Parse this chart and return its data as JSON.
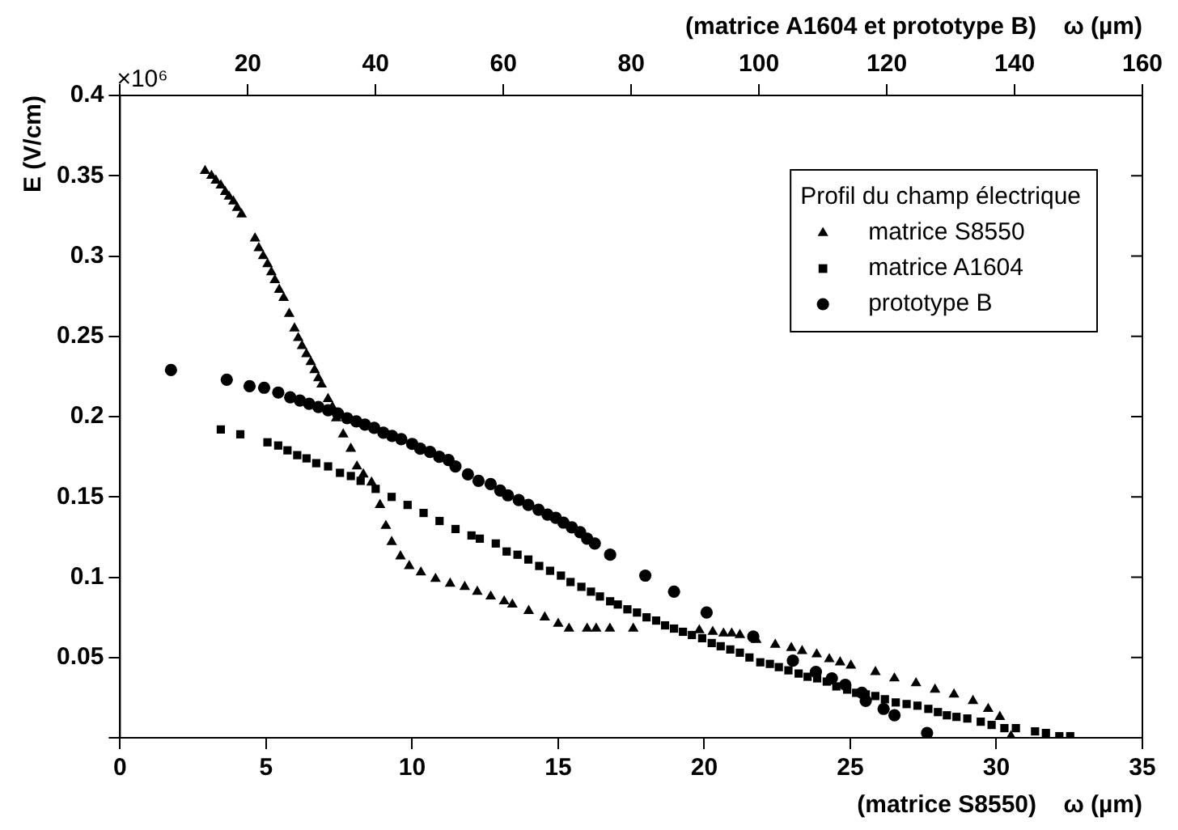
{
  "chart_data": {
    "type": "scatter",
    "xlabel": "(matrice S8550)    ω (µm)",
    "x2label": "(matrice A1604 et prototype B)    ω (µm)",
    "ylabel": "E (V/cm)",
    "legend_title": "Profil du champ électrique",
    "annotations": [
      "×10⁶"
    ],
    "xlim": [
      0,
      35
    ],
    "xticks": [
      0,
      5,
      10,
      15,
      20,
      25,
      30,
      35
    ],
    "x2lim": [
      0,
      160
    ],
    "x2ticks": [
      {
        "value": 0,
        "label": null
      },
      20,
      40,
      60,
      80,
      100,
      120,
      140,
      160
    ],
    "ylim": [
      0,
      0.4
    ],
    "yticks": [
      {
        "value": 0,
        "label": null
      },
      0.05,
      0.1,
      0.15,
      0.2,
      0.25,
      0.3,
      0.35,
      0.4
    ],
    "grid": false,
    "legend": "top right",
    "series": [
      {
        "name": "matrice S8550",
        "color": "#000000",
        "marker": "triangle",
        "x": [
          2.91,
          3.13,
          3.28,
          3.45,
          3.6,
          3.73,
          3.88,
          4.01,
          4.16,
          4.62,
          4.75,
          4.9,
          5.05,
          5.18,
          5.3,
          5.45,
          5.6,
          5.79,
          5.97,
          6.1,
          6.23,
          6.38,
          6.53,
          6.66,
          6.79,
          6.9,
          7.12,
          7.27,
          7.4,
          7.64,
          7.9,
          8.11,
          8.33,
          8.61,
          8.9,
          9.1,
          9.3,
          9.6,
          9.9,
          10.3,
          10.8,
          11.3,
          11.8,
          12.23,
          12.69,
          13.15,
          13.43,
          13.99,
          14.54,
          15.0,
          15.37,
          15.99,
          16.3,
          16.77,
          17.57,
          19.83,
          20.29,
          20.66,
          20.94,
          21.22,
          21.78,
          22.43,
          22.98,
          23.35,
          23.85,
          24.28,
          24.65,
          25.02,
          25.86,
          26.51,
          27.25,
          27.9,
          28.55,
          29.2,
          29.72,
          30.12,
          30.5
        ],
        "values": [
          0.353,
          0.35,
          0.347,
          0.344,
          0.34,
          0.337,
          0.334,
          0.33,
          0.326,
          0.311,
          0.305,
          0.3,
          0.295,
          0.29,
          0.285,
          0.279,
          0.274,
          0.264,
          0.255,
          0.249,
          0.244,
          0.239,
          0.234,
          0.229,
          0.224,
          0.22,
          0.211,
          0.206,
          0.199,
          0.189,
          0.18,
          0.169,
          0.164,
          0.159,
          0.145,
          0.132,
          0.122,
          0.113,
          0.107,
          0.103,
          0.099,
          0.096,
          0.094,
          0.091,
          0.088,
          0.085,
          0.083,
          0.079,
          0.075,
          0.071,
          0.068,
          0.068,
          0.068,
          0.068,
          0.068,
          0.067,
          0.066,
          0.065,
          0.065,
          0.064,
          0.061,
          0.058,
          0.056,
          0.054,
          0.052,
          0.049,
          0.047,
          0.045,
          0.041,
          0.037,
          0.034,
          0.03,
          0.027,
          0.023,
          0.018,
          0.013,
          0.001
        ]
      },
      {
        "name": "matrice A1604",
        "color": "#000000",
        "marker": "square",
        "axis": "x2",
        "x": [
          15.77,
          18.82,
          23.07,
          24.75,
          26.2,
          27.73,
          29.18,
          30.7,
          32.56,
          34.42,
          36.12,
          37.65,
          40,
          42.5,
          45,
          47.5,
          50,
          52.5,
          55,
          56.3,
          58.8,
          60.5,
          62.2,
          63.9,
          65.6,
          67.3,
          69.0,
          70.5,
          72.2,
          73.7,
          75.1,
          76.7,
          77.9,
          79.4,
          80.9,
          82.4,
          83.9,
          85.3,
          86.7,
          88.1,
          89.5,
          91.1,
          92.6,
          94.0,
          95.5,
          97.0,
          98.5,
          100.2,
          101.7,
          103.1,
          104.6,
          106.2,
          107.6,
          109.1,
          110.6,
          112.1,
          113.8,
          115.2,
          116.7,
          118.2,
          119.7,
          121.4,
          123.1,
          124.8,
          126.5,
          128.0,
          129.4,
          130.9,
          132.6,
          134.7,
          136.4,
          138.4,
          140.2,
          143.2,
          144.9,
          147.0,
          148.7
        ],
        "values": [
          0.192,
          0.189,
          0.184,
          0.182,
          0.179,
          0.176,
          0.174,
          0.171,
          0.169,
          0.165,
          0.163,
          0.16,
          0.155,
          0.15,
          0.145,
          0.14,
          0.135,
          0.13,
          0.126,
          0.124,
          0.121,
          0.116,
          0.114,
          0.111,
          0.107,
          0.104,
          0.101,
          0.097,
          0.094,
          0.091,
          0.088,
          0.085,
          0.083,
          0.08,
          0.078,
          0.075,
          0.073,
          0.07,
          0.068,
          0.066,
          0.064,
          0.062,
          0.059,
          0.057,
          0.055,
          0.053,
          0.05,
          0.047,
          0.046,
          0.044,
          0.042,
          0.04,
          0.038,
          0.037,
          0.035,
          0.032,
          0.03,
          0.028,
          0.027,
          0.026,
          0.024,
          0.022,
          0.021,
          0.02,
          0.018,
          0.016,
          0.014,
          0.013,
          0.012,
          0.01,
          0.008,
          0.006,
          0.006,
          0.004,
          0.003,
          0.001,
          0.001
        ]
      },
      {
        "name": "prototype B",
        "color": "#000000",
        "marker": "circle",
        "axis": "x2",
        "x": [
          7.97,
          16.7,
          20.27,
          22.55,
          24.76,
          26.63,
          28.15,
          29.59,
          31.04,
          32.56,
          34.09,
          35.53,
          36.97,
          38.33,
          39.77,
          41.21,
          42.57,
          44.01,
          45.71,
          46.98,
          48.51,
          49.95,
          51.39,
          52.49,
          54.44,
          56.1,
          58.0,
          59.5,
          60.7,
          62.4,
          63.9,
          65.5,
          66.9,
          68.2,
          69.4,
          70.7,
          72.0,
          73.1,
          74.3,
          76.7,
          82.2,
          86.7,
          91.8,
          99.1,
          105.3,
          108.9,
          111.4,
          113.5,
          116.1,
          116.7,
          119.5,
          121.2,
          126.3
        ],
        "values": [
          0.229,
          0.223,
          0.219,
          0.218,
          0.215,
          0.212,
          0.21,
          0.208,
          0.206,
          0.204,
          0.202,
          0.199,
          0.197,
          0.195,
          0.193,
          0.19,
          0.188,
          0.186,
          0.183,
          0.18,
          0.178,
          0.175,
          0.173,
          0.169,
          0.164,
          0.16,
          0.158,
          0.154,
          0.151,
          0.148,
          0.145,
          0.142,
          0.139,
          0.137,
          0.134,
          0.131,
          0.128,
          0.124,
          0.121,
          0.114,
          0.101,
          0.091,
          0.078,
          0.063,
          0.048,
          0.041,
          0.037,
          0.033,
          0.028,
          0.023,
          0.018,
          0.014,
          0.003
        ]
      }
    ]
  }
}
